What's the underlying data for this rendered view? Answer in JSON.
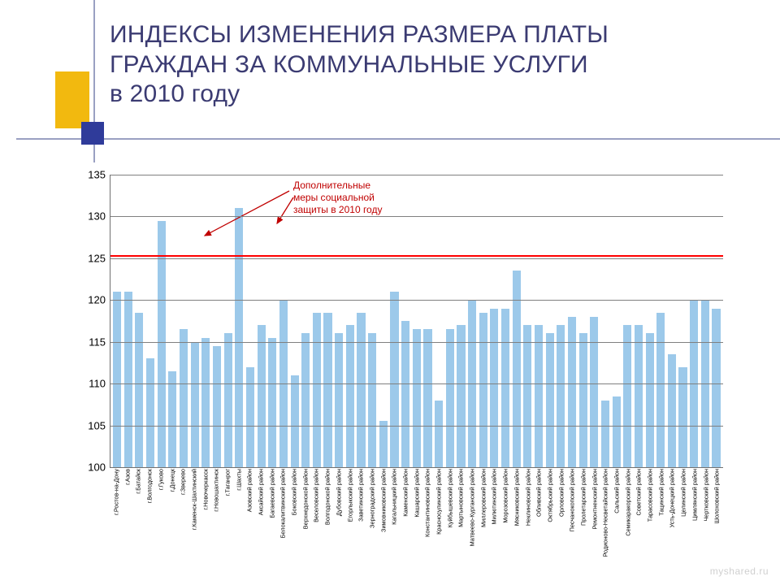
{
  "decor": {
    "yellow": "#f2b90f",
    "blue": "#2f3b9a",
    "rule": "#9aa0c2"
  },
  "title": "ИНДЕКСЫ ИЗМЕНЕНИЯ РАЗМЕРА ПЛАТЫ ГРАЖДАН ЗА КОММУНАЛЬНЫЕ УСЛУГИ\nв 2010 году",
  "title_color": "#3b3b72",
  "title_fontsize": 30,
  "chart": {
    "type": "bar",
    "ylim": [
      100,
      135
    ],
    "ytick_step": 5,
    "yticks": [
      100,
      105,
      110,
      115,
      120,
      125,
      130,
      135
    ],
    "grid_color": "#808080",
    "axis_color": "#707070",
    "bar_color": "#9cc9ea",
    "bar_width": 0.68,
    "background_color": "#ffffff",
    "reference_line": {
      "value": 125.3,
      "color": "#ff0000",
      "width": 2
    },
    "annotation": {
      "text": "Дополнительные\nмеры социальной\nзащиты в 2010 году",
      "color": "#c00000",
      "fontsize": 12,
      "arrows": [
        {
          "from": [
            220,
            20
          ],
          "to": [
            116,
            75
          ]
        },
        {
          "from": [
            225,
            28
          ],
          "to": [
            205,
            60
          ]
        }
      ]
    },
    "categories": [
      "г.Ростов-на-Дону",
      "г.Азов",
      "г.Батайск",
      "г.Волгодонск",
      "г.Гуково",
      "г.Донецк",
      "г.Зверево",
      "г.Каменск-Шахтинский",
      "г.Новочеркасск",
      "г.Новошахтинск",
      "г.Таганрог",
      "г.Шахты",
      "Азовский район",
      "Аксайский район",
      "Багаевский район",
      "Белокалитвинский район",
      "Боковский район",
      "Верхнедонской район",
      "Веселовский район",
      "Волгодонской район",
      "Дубовский район",
      "Егорлыкский район",
      "Заветинский район",
      "Зерноградский район",
      "Зимовниковский район",
      "Кагальницкий район",
      "Каменский район",
      "Кашарский район",
      "Константиновский район",
      "Красносулинский район",
      "Куйбышевский район",
      "Мартыновский район",
      "Матвеево-Курганский район",
      "Миллеровский район",
      "Милютинский район",
      "Морозовский район",
      "Мясниковский район",
      "Неклиновский район",
      "Обливский район",
      "Октябрьский район",
      "Орловский район",
      "Песчанокопский район",
      "Пролетарский район",
      "Ремонтненский район",
      "Родионово-Несветайский район",
      "Сальский район",
      "Семикаракорский район",
      "Советский район",
      "Тарасовский район",
      "Тацинский район",
      "Усть-Донецкий район",
      "Целинский район",
      "Цимлянский район",
      "Чертковский район",
      "Шолоховский район"
    ],
    "values": [
      121,
      121,
      118.5,
      113,
      129.5,
      111.5,
      116.5,
      115,
      115.5,
      114.5,
      116,
      131,
      112,
      117,
      115.5,
      120,
      111,
      116,
      118.5,
      118.5,
      116,
      117,
      118.5,
      116,
      105.5,
      121,
      117.5,
      116.5,
      116.5,
      108,
      116.5,
      117,
      120,
      118.5,
      119,
      119,
      123.5,
      117,
      117,
      116,
      117,
      118,
      116,
      118,
      108,
      108.5,
      117,
      117,
      116,
      118.5,
      113.5,
      112,
      120,
      120,
      119
    ]
  },
  "watermark": "myshared.ru"
}
